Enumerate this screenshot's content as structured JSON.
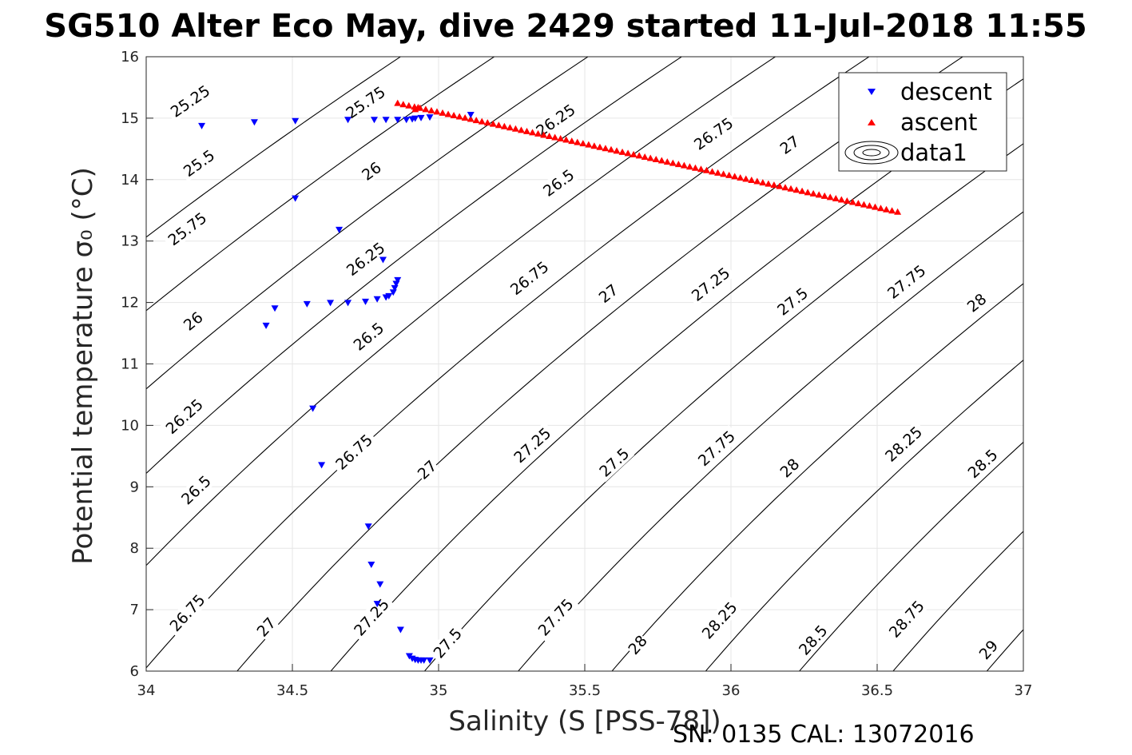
{
  "chart_data": {
    "type": "scatter",
    "title": "SG510 Alter Eco May, dive 2429 started 11-Jul-2018 11:55",
    "xlabel": "Salinity (S [PSS-78])",
    "ylabel": "Potential temperature σ₀ (°C)",
    "footer": "SN: 0135  CAL: 13072016",
    "xlim": [
      34,
      37
    ],
    "ylim": [
      6,
      16
    ],
    "xticks": [
      "34",
      "34.5",
      "35",
      "35.5",
      "36",
      "36.5",
      "37"
    ],
    "yticks": [
      "6",
      "7",
      "8",
      "9",
      "10",
      "11",
      "12",
      "13",
      "14",
      "15",
      "16"
    ],
    "grid": true,
    "legend_position": "top-right",
    "legend": [
      "descent",
      "ascent",
      "data1"
    ],
    "colors": {
      "descent": "#0000ff",
      "ascent": "#ff0000",
      "contour": "#000000",
      "grid": "#e6e6e6"
    },
    "series": [
      {
        "name": "descent",
        "marker": "triangle-down",
        "x": [
          34.19,
          34.37,
          34.51,
          34.69,
          34.78,
          34.82,
          34.86,
          34.89,
          34.91,
          34.92,
          34.94,
          34.97,
          35.11,
          34.51,
          34.66,
          34.81,
          34.86,
          34.855,
          34.85,
          34.845,
          34.83,
          34.82,
          34.79,
          34.75,
          34.69,
          34.63,
          34.55,
          34.44,
          34.41,
          34.57,
          34.6,
          34.76,
          34.77,
          34.8,
          34.79,
          34.87,
          34.9,
          34.91,
          34.92,
          34.93,
          34.94,
          34.95,
          34.97
        ],
        "y": [
          14.87,
          14.93,
          14.95,
          14.97,
          14.97,
          14.97,
          14.97,
          14.97,
          14.98,
          14.99,
          15.0,
          15.01,
          15.05,
          13.69,
          13.18,
          12.69,
          12.36,
          12.3,
          12.23,
          12.16,
          12.1,
          12.08,
          12.05,
          12.01,
          11.99,
          11.99,
          11.97,
          11.9,
          11.62,
          10.27,
          9.35,
          8.35,
          7.73,
          7.41,
          7.09,
          6.67,
          6.24,
          6.2,
          6.18,
          6.17,
          6.17,
          6.17,
          6.17
        ]
      },
      {
        "name": "ascent",
        "marker": "triangle-up",
        "x_from": 34.86,
        "y_from": 15.25,
        "x_to": 36.57,
        "y_to": 13.48,
        "count": 90,
        "extra_points": [
          [
            34.92,
            15.15
          ],
          [
            34.93,
            15.18
          ]
        ]
      }
    ],
    "contours": [
      {
        "level": "25.25"
      },
      {
        "level": "25.5"
      },
      {
        "level": "25.75"
      },
      {
        "level": "26"
      },
      {
        "level": "26.25"
      },
      {
        "level": "26.5"
      },
      {
        "level": "26.75"
      },
      {
        "level": "27"
      },
      {
        "level": "27.25"
      },
      {
        "level": "27.5"
      },
      {
        "level": "27.75"
      },
      {
        "level": "28"
      },
      {
        "level": "28.25"
      },
      {
        "level": "28.5"
      },
      {
        "level": "28.75"
      },
      {
        "level": "29"
      }
    ],
    "contour_labels": [
      {
        "text": "25.25",
        "s": 34.15,
        "t": 15.28
      },
      {
        "text": "25.5",
        "s": 34.18,
        "t": 14.27
      },
      {
        "text": "25.75",
        "s": 34.14,
        "t": 13.2
      },
      {
        "text": "26",
        "s": 34.16,
        "t": 11.7
      },
      {
        "text": "26.25",
        "s": 34.13,
        "t": 10.15
      },
      {
        "text": "26.5",
        "s": 34.17,
        "t": 8.95
      },
      {
        "text": "26.75",
        "s": 34.14,
        "t": 6.95
      },
      {
        "text": "25.75",
        "s": 34.75,
        "t": 15.26
      },
      {
        "text": "26",
        "s": 34.77,
        "t": 14.14
      },
      {
        "text": "26.25",
        "s": 34.75,
        "t": 12.71
      },
      {
        "text": "26.5",
        "s": 34.76,
        "t": 11.45
      },
      {
        "text": "26.75",
        "s": 34.71,
        "t": 9.57
      },
      {
        "text": "27",
        "s": 34.41,
        "t": 6.72
      },
      {
        "text": "27.25",
        "s": 34.77,
        "t": 6.88
      },
      {
        "text": "27",
        "s": 34.96,
        "t": 9.28
      },
      {
        "text": "27.5",
        "s": 35.03,
        "t": 6.46
      },
      {
        "text": "26.25",
        "s": 35.4,
        "t": 14.97
      },
      {
        "text": "26.5",
        "s": 35.41,
        "t": 13.95
      },
      {
        "text": "26.75",
        "s": 35.31,
        "t": 12.4
      },
      {
        "text": "27.25",
        "s": 35.32,
        "t": 9.68
      },
      {
        "text": "27.75",
        "s": 35.4,
        "t": 6.88
      },
      {
        "text": "27",
        "s": 35.58,
        "t": 12.15
      },
      {
        "text": "27.5",
        "s": 35.6,
        "t": 9.4
      },
      {
        "text": "28",
        "s": 35.68,
        "t": 6.43
      },
      {
        "text": "26.75",
        "s": 35.94,
        "t": 14.75
      },
      {
        "text": "27.25",
        "s": 35.93,
        "t": 12.3
      },
      {
        "text": "27.75",
        "s": 35.95,
        "t": 9.63
      },
      {
        "text": "28.25",
        "s": 35.96,
        "t": 6.83
      },
      {
        "text": "27",
        "s": 36.2,
        "t": 14.57
      },
      {
        "text": "27.5",
        "s": 36.21,
        "t": 12.02
      },
      {
        "text": "28",
        "s": 36.2,
        "t": 9.31
      },
      {
        "text": "28.5",
        "s": 36.28,
        "t": 6.51
      },
      {
        "text": "27.75",
        "s": 36.6,
        "t": 12.34
      },
      {
        "text": "28.25",
        "s": 36.59,
        "t": 9.7
      },
      {
        "text": "28.5",
        "s": 36.86,
        "t": 9.38
      },
      {
        "text": "28.75",
        "s": 36.6,
        "t": 6.85
      },
      {
        "text": "28",
        "s": 36.84,
        "t": 12.0
      },
      {
        "text": "29",
        "s": 36.88,
        "t": 6.35
      }
    ]
  }
}
